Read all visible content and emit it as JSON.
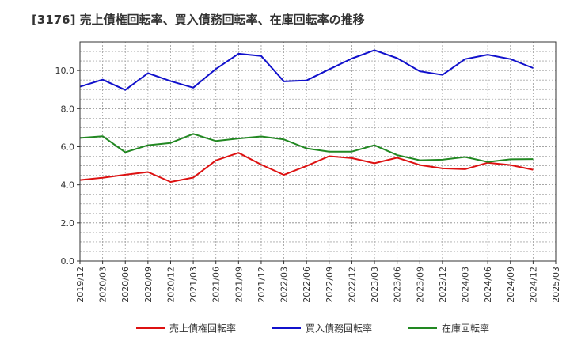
{
  "chart_data": {
    "type": "line",
    "title": "[3176]  売上債権回転率、買入債務回転率、在庫回転率の推移",
    "xlabel": "",
    "ylabel": "",
    "ylim": [
      0,
      11.5
    ],
    "yticks": [
      "0.0",
      "2.0",
      "4.0",
      "6.0",
      "8.0",
      "10.0"
    ],
    "ytick_values": [
      0,
      2,
      4,
      6,
      8,
      10
    ],
    "grid": true,
    "legend_position": "bottom",
    "categories": [
      "2019/12",
      "2020/03",
      "2020/06",
      "2020/09",
      "2020/12",
      "2021/03",
      "2021/06",
      "2021/09",
      "2021/12",
      "2022/03",
      "2022/06",
      "2022/09",
      "2022/12",
      "2023/03",
      "2023/06",
      "2023/09",
      "2023/12",
      "2024/03",
      "2024/06",
      "2024/09",
      "2024/12",
      "2025/03"
    ],
    "series": [
      {
        "name": "売上債権回転率",
        "color": "#dd1111",
        "values": [
          4.25,
          4.37,
          4.53,
          4.67,
          4.15,
          4.38,
          5.28,
          5.68,
          5.06,
          4.52,
          4.99,
          5.5,
          5.4,
          5.13,
          5.42,
          5.04,
          4.86,
          4.82,
          5.16,
          5.04,
          4.79,
          null
        ]
      },
      {
        "name": "買入債務回転率",
        "color": "#1111cc",
        "values": [
          9.15,
          9.52,
          8.98,
          9.86,
          9.44,
          9.1,
          10.08,
          10.88,
          10.76,
          9.43,
          9.48,
          10.06,
          10.63,
          11.07,
          10.65,
          9.96,
          9.77,
          10.6,
          10.83,
          10.6,
          10.13,
          null
        ]
      },
      {
        "name": "在庫回転率",
        "color": "#228822",
        "values": [
          6.46,
          6.55,
          5.71,
          6.08,
          6.2,
          6.67,
          6.3,
          6.43,
          6.54,
          6.38,
          5.91,
          5.74,
          5.74,
          6.08,
          5.56,
          5.29,
          5.32,
          5.46,
          5.2,
          5.34,
          5.35,
          null
        ]
      }
    ]
  }
}
